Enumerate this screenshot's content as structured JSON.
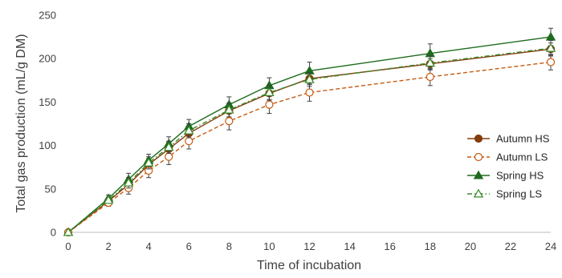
{
  "chart_data": {
    "type": "line",
    "xlabel": "Time of incubation",
    "ylabel": "Total gas production  (mL/g DM)",
    "xlim": [
      0,
      24
    ],
    "ylim": [
      0,
      250
    ],
    "xticks": [
      0,
      2,
      4,
      6,
      8,
      10,
      12,
      14,
      16,
      18,
      20,
      22,
      24
    ],
    "yticks": [
      0,
      50,
      100,
      150,
      200,
      250
    ],
    "x": [
      0,
      2,
      3,
      4,
      5,
      6,
      8,
      10,
      12,
      18,
      24
    ],
    "grid": false,
    "legend_position": "right",
    "series": [
      {
        "name": "Autumn HS",
        "color": "#843C0C",
        "marker": "circle",
        "marker_fill": "filled",
        "line_style": "solid",
        "values": [
          0,
          36,
          55,
          78,
          96,
          114,
          140,
          160,
          177,
          194,
          211
        ],
        "errors": [
          0,
          3,
          6,
          7,
          8,
          8,
          8,
          8,
          7,
          6,
          7
        ]
      },
      {
        "name": "Autumn LS",
        "color": "#C55A11",
        "marker": "circle",
        "marker_fill": "open",
        "line_style": "dashed",
        "values": [
          0,
          34,
          51,
          71,
          87,
          105,
          128,
          147,
          161,
          179,
          196
        ],
        "errors": [
          0,
          4,
          7,
          8,
          9,
          9,
          10,
          10,
          10,
          10,
          9
        ]
      },
      {
        "name": "Spring HS",
        "color": "#1E6B1E",
        "marker": "triangle",
        "marker_fill": "filled",
        "line_style": "solid",
        "values": [
          0,
          39,
          61,
          83,
          102,
          122,
          147,
          169,
          186,
          206,
          225
        ],
        "errors": [
          0,
          4,
          7,
          7,
          8,
          8,
          9,
          9,
          10,
          11,
          10
        ]
      },
      {
        "name": "Spring LS",
        "color": "#3A8A2A",
        "marker": "triangle",
        "marker_fill": "open",
        "line_style": "dashdot",
        "values": [
          0,
          37,
          57,
          80,
          98,
          117,
          141,
          161,
          176,
          195,
          212
        ],
        "errors": [
          0,
          3,
          6,
          7,
          7,
          8,
          8,
          8,
          8,
          8,
          9
        ]
      }
    ]
  }
}
